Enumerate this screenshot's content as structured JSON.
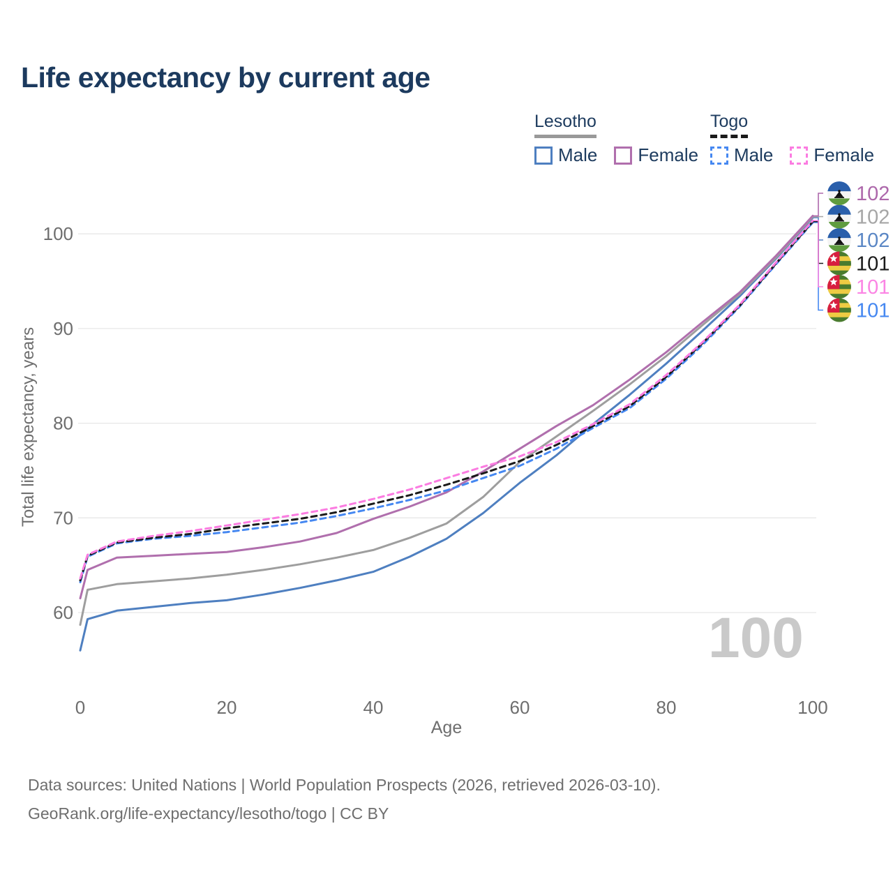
{
  "title": "Life expectancy by current age",
  "legend": {
    "groups": [
      {
        "label": "Lesotho",
        "line_style": "solid",
        "underline_color": "#999999",
        "items": [
          {
            "label": "Male",
            "color": "#4e7fc0",
            "dashed": false
          },
          {
            "label": "Female",
            "color": "#b06fad",
            "dashed": false
          }
        ]
      },
      {
        "label": "Togo",
        "line_style": "dashed",
        "underline_color": "#1a1a1a",
        "items": [
          {
            "label": "Male",
            "color": "#4688f1",
            "dashed": true
          },
          {
            "label": "Female",
            "color": "#fb7ce1",
            "dashed": true
          }
        ]
      }
    ]
  },
  "chart_data": {
    "type": "line",
    "title": "Life expectancy by current age",
    "xlabel": "Age",
    "ylabel": "Total life expectancy, years",
    "xlim": [
      0,
      100
    ],
    "ylim": [
      60,
      100
    ],
    "x_ticks": [
      0,
      20,
      40,
      60,
      80,
      100
    ],
    "y_ticks": [
      60,
      70,
      80,
      90,
      100
    ],
    "grid": "horizontal-only",
    "x": [
      0,
      1,
      5,
      10,
      15,
      20,
      25,
      30,
      35,
      40,
      45,
      50,
      55,
      60,
      65,
      70,
      75,
      80,
      85,
      90,
      95,
      100
    ],
    "series": [
      {
        "name": "Lesotho male",
        "country": "Lesotho",
        "sex": "male",
        "color": "#4e7fc0",
        "dashed": false,
        "values": [
          56.0,
          59.3,
          60.2,
          60.6,
          61.0,
          61.3,
          61.9,
          62.6,
          63.4,
          64.3,
          65.9,
          67.8,
          70.5,
          73.7,
          76.6,
          79.9,
          83.0,
          86.3,
          89.8,
          93.4,
          97.4,
          101.7
        ],
        "end_label": "102",
        "end_label_color": "#5b87c5",
        "flag": "lesotho",
        "label_slot": 2
      },
      {
        "name": "Lesotho both sexes",
        "country": "Lesotho",
        "sex": "both",
        "color": "#9e9e9e",
        "dashed": false,
        "values": [
          58.7,
          62.4,
          63.0,
          63.3,
          63.6,
          64.0,
          64.5,
          65.1,
          65.8,
          66.6,
          67.9,
          69.4,
          72.2,
          75.9,
          78.6,
          81.3,
          84.1,
          87.1,
          90.4,
          93.6,
          97.5,
          101.8
        ],
        "end_label": "102",
        "end_label_color": "#a6a6a6",
        "flag": "lesotho",
        "label_slot": 1
      },
      {
        "name": "Lesotho female",
        "country": "Lesotho",
        "sex": "female",
        "color": "#b06fad",
        "dashed": false,
        "values": [
          61.5,
          64.5,
          65.8,
          66.0,
          66.2,
          66.4,
          66.9,
          67.5,
          68.4,
          69.9,
          71.2,
          72.7,
          74.9,
          77.3,
          79.7,
          81.9,
          84.6,
          87.5,
          90.7,
          93.8,
          97.7,
          101.9
        ],
        "end_label": "102",
        "end_label_color": "#ad68ab",
        "flag": "lesotho",
        "label_slot": 0
      },
      {
        "name": "Togo male",
        "country": "Togo",
        "sex": "male",
        "color": "#4688f1",
        "dashed": true,
        "values": [
          63.2,
          65.9,
          67.3,
          67.8,
          68.1,
          68.5,
          69.0,
          69.5,
          70.2,
          71.0,
          71.9,
          72.9,
          74.2,
          75.5,
          77.3,
          79.5,
          81.6,
          84.7,
          88.3,
          92.3,
          96.8,
          101.2
        ],
        "end_label": "101",
        "end_label_color": "#4688f1",
        "flag": "togo",
        "label_slot": 5
      },
      {
        "name": "Togo both sexes",
        "country": "Togo",
        "sex": "both",
        "color": "#1a1a1a",
        "dashed": true,
        "values": [
          63.4,
          66.0,
          67.4,
          67.9,
          68.3,
          68.9,
          69.4,
          69.9,
          70.6,
          71.5,
          72.4,
          73.5,
          74.7,
          76.0,
          77.7,
          79.7,
          81.8,
          84.9,
          88.5,
          92.4,
          96.9,
          101.3
        ],
        "end_label": "101",
        "end_label_color": "#1a1a1a",
        "flag": "togo",
        "label_slot": 3
      },
      {
        "name": "Togo female",
        "country": "Togo",
        "sex": "female",
        "color": "#fb7ce1",
        "dashed": true,
        "values": [
          63.6,
          66.1,
          67.5,
          68.1,
          68.6,
          69.2,
          69.8,
          70.4,
          71.1,
          72.0,
          73.0,
          74.2,
          75.4,
          76.5,
          78.0,
          79.9,
          82.0,
          85.1,
          88.6,
          92.5,
          97.0,
          101.4
        ],
        "end_label": "101",
        "end_label_color": "#fb85e4",
        "flag": "togo",
        "label_slot": 4
      }
    ]
  },
  "annotations": {
    "current_age_watermark": "100"
  },
  "footer": {
    "line1": "Data sources: United Nations | World Population Prospects (2026, retrieved 2026-03-10).",
    "line2": "GeoRank.org/life-expectancy/lesotho/togo | CC BY"
  },
  "colors": {
    "title": "#1c3a5e",
    "grid": "#e7e7e7",
    "tick_text": "#6e6e6e",
    "watermark": "#c9c9c9"
  }
}
